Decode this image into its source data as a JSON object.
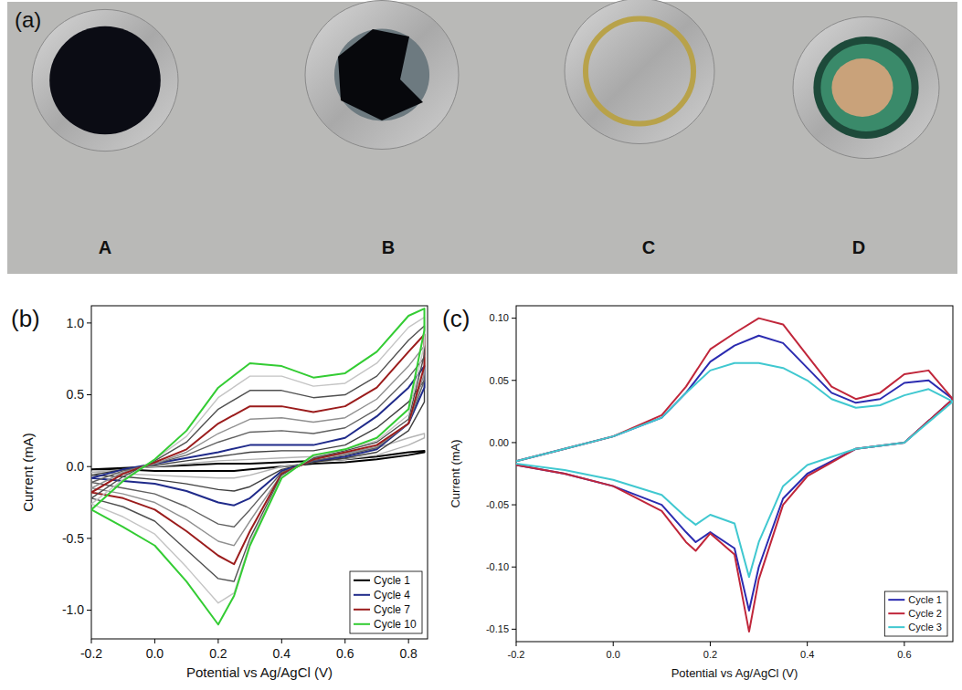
{
  "panel_a": {
    "letter": "(a)",
    "labels": [
      "A",
      "B",
      "C",
      "D"
    ]
  },
  "chart_data": [
    {
      "type": "line",
      "title": "(b)",
      "x_label": "Potential vs Ag/AgCl (V)",
      "y_label": "Current (mA)",
      "xlim": [
        -0.2,
        0.86
      ],
      "ylim": [
        -1.2,
        1.12
      ],
      "xticks": [
        -0.2,
        {
          "value": 0,
          "label": "0.0"
        },
        0.2,
        0.4,
        0.6,
        0.8
      ],
      "yticks": [
        {
          "value": -1,
          "label": "-1.0"
        },
        -0.5,
        {
          "value": 0,
          "label": "0.0"
        },
        0.5,
        {
          "value": 1,
          "label": "1.0"
        }
      ],
      "grid": false,
      "legend": "lower right",
      "series": [
        {
          "name": "Cycle 1",
          "color": "#000000",
          "x": [
            -0.2,
            -0.1,
            0,
            0.1,
            0.2,
            0.3,
            0.4,
            0.5,
            0.6,
            0.7,
            0.8,
            0.85,
            0.85,
            0.8,
            0.7,
            0.6,
            0.5,
            0.4,
            0.3,
            0.25,
            0.2,
            0.1,
            0,
            -0.1,
            -0.2
          ],
          "values": [
            -0.02,
            -0.01,
            0,
            0.01,
            0.02,
            0.02,
            0.03,
            0.04,
            0.05,
            0.07,
            0.1,
            0.11,
            0.1,
            0.08,
            0.05,
            0.03,
            0.02,
            0,
            -0.02,
            -0.03,
            -0.03,
            -0.03,
            -0.03,
            -0.02,
            -0.02
          ]
        },
        {
          "color": "#b4b4b4",
          "x": [
            -0.2,
            -0.1,
            0,
            0.1,
            0.2,
            0.3,
            0.4,
            0.5,
            0.6,
            0.7,
            0.8,
            0.85,
            0.85,
            0.8,
            0.7,
            0.6,
            0.5,
            0.4,
            0.3,
            0.25,
            0.2,
            0.1,
            0,
            -0.1,
            -0.2
          ],
          "values": [
            -0.04,
            -0.02,
            0,
            0.02,
            0.04,
            0.05,
            0.06,
            0.07,
            0.09,
            0.13,
            0.2,
            0.23,
            0.2,
            0.15,
            0.08,
            0.05,
            0.03,
            0,
            -0.06,
            -0.08,
            -0.08,
            -0.07,
            -0.06,
            -0.05,
            -0.04
          ]
        },
        {
          "color": "#404040",
          "x": [
            -0.2,
            -0.1,
            0,
            0.1,
            0.2,
            0.3,
            0.4,
            0.5,
            0.6,
            0.7,
            0.8,
            0.85,
            0.85,
            0.8,
            0.7,
            0.6,
            0.5,
            0.4,
            0.3,
            0.25,
            0.2,
            0.1,
            0,
            -0.1,
            -0.2
          ],
          "values": [
            -0.06,
            -0.02,
            0.01,
            0.04,
            0.07,
            0.1,
            0.11,
            0.11,
            0.15,
            0.27,
            0.45,
            0.6,
            0.45,
            0.25,
            0.1,
            0.06,
            0.03,
            -0.02,
            -0.14,
            -0.17,
            -0.16,
            -0.12,
            -0.09,
            -0.07,
            -0.06
          ]
        },
        {
          "name": "Cycle 4",
          "color": "#1f2a8a",
          "x": [
            -0.2,
            -0.1,
            0,
            0.1,
            0.2,
            0.3,
            0.4,
            0.5,
            0.6,
            0.7,
            0.8,
            0.85,
            0.85,
            0.8,
            0.7,
            0.6,
            0.5,
            0.4,
            0.3,
            0.25,
            0.2,
            0.1,
            0,
            -0.1,
            -0.2
          ],
          "values": [
            -0.08,
            -0.02,
            0.02,
            0.06,
            0.1,
            0.15,
            0.15,
            0.15,
            0.2,
            0.35,
            0.55,
            0.7,
            0.55,
            0.3,
            0.12,
            0.07,
            0.04,
            -0.03,
            -0.22,
            -0.27,
            -0.25,
            -0.17,
            -0.12,
            -0.1,
            -0.08
          ]
        },
        {
          "color": "#606060",
          "x": [
            -0.2,
            -0.1,
            0,
            0.1,
            0.2,
            0.3,
            0.4,
            0.5,
            0.6,
            0.7,
            0.8,
            0.85,
            0.85,
            0.8,
            0.7,
            0.6,
            0.5,
            0.4,
            0.3,
            0.25,
            0.2,
            0.1,
            0,
            -0.1,
            -0.2
          ],
          "values": [
            -0.11,
            -0.03,
            0.02,
            0.08,
            0.17,
            0.24,
            0.25,
            0.23,
            0.27,
            0.4,
            0.62,
            0.76,
            0.6,
            0.3,
            0.13,
            0.08,
            0.04,
            -0.04,
            -0.3,
            -0.42,
            -0.4,
            -0.28,
            -0.19,
            -0.15,
            -0.11
          ]
        },
        {
          "color": "#909090",
          "x": [
            -0.2,
            -0.1,
            0,
            0.1,
            0.2,
            0.3,
            0.4,
            0.5,
            0.6,
            0.7,
            0.8,
            0.85,
            0.85,
            0.8,
            0.7,
            0.6,
            0.5,
            0.4,
            0.3,
            0.25,
            0.2,
            0.1,
            0,
            -0.1,
            -0.2
          ],
          "values": [
            -0.15,
            -0.04,
            0.02,
            0.1,
            0.23,
            0.33,
            0.34,
            0.31,
            0.34,
            0.47,
            0.7,
            0.84,
            0.65,
            0.3,
            0.14,
            0.09,
            0.05,
            -0.05,
            -0.38,
            -0.55,
            -0.52,
            -0.37,
            -0.25,
            -0.19,
            -0.15
          ]
        },
        {
          "name": "Cycle 7",
          "color": "#9b1c1c",
          "x": [
            -0.2,
            -0.1,
            0,
            0.1,
            0.2,
            0.3,
            0.4,
            0.5,
            0.6,
            0.7,
            0.8,
            0.85,
            0.85,
            0.8,
            0.7,
            0.6,
            0.5,
            0.4,
            0.3,
            0.25,
            0.2,
            0.1,
            0,
            -0.1,
            -0.2
          ],
          "values": [
            -0.18,
            -0.05,
            0.03,
            0.12,
            0.3,
            0.42,
            0.42,
            0.38,
            0.42,
            0.55,
            0.8,
            0.92,
            0.7,
            0.3,
            0.15,
            0.1,
            0.05,
            -0.05,
            -0.45,
            -0.68,
            -0.62,
            -0.45,
            -0.3,
            -0.22,
            -0.18
          ]
        },
        {
          "color": "#505050",
          "x": [
            -0.2,
            -0.1,
            0,
            0.1,
            0.2,
            0.3,
            0.4,
            0.5,
            0.6,
            0.7,
            0.8,
            0.85,
            0.85,
            0.8,
            0.7,
            0.6,
            0.5,
            0.4,
            0.3,
            0.25,
            0.2,
            0.1,
            0,
            -0.1,
            -0.2
          ],
          "values": [
            -0.22,
            -0.07,
            0.04,
            0.17,
            0.4,
            0.53,
            0.53,
            0.48,
            0.5,
            0.63,
            0.88,
            0.98,
            0.78,
            0.33,
            0.17,
            0.11,
            0.06,
            -0.06,
            -0.5,
            -0.8,
            -0.78,
            -0.58,
            -0.38,
            -0.28,
            -0.22
          ]
        },
        {
          "color": "#c4c4c4",
          "x": [
            -0.2,
            -0.1,
            0,
            0.1,
            0.2,
            0.3,
            0.4,
            0.5,
            0.6,
            0.7,
            0.8,
            0.85,
            0.85,
            0.8,
            0.7,
            0.6,
            0.5,
            0.4,
            0.3,
            0.25,
            0.2,
            0.1,
            0,
            -0.1,
            -0.2
          ],
          "values": [
            -0.26,
            -0.09,
            0.05,
            0.21,
            0.48,
            0.63,
            0.63,
            0.56,
            0.58,
            0.72,
            0.97,
            1.04,
            0.85,
            0.36,
            0.18,
            0.12,
            0.07,
            -0.07,
            -0.53,
            -0.88,
            -0.95,
            -0.7,
            -0.47,
            -0.35,
            -0.26
          ]
        },
        {
          "name": "Cycle 10",
          "color": "#33cc33",
          "x": [
            -0.2,
            -0.1,
            0,
            0.1,
            0.2,
            0.3,
            0.4,
            0.5,
            0.6,
            0.7,
            0.8,
            0.85,
            0.85,
            0.8,
            0.7,
            0.6,
            0.5,
            0.4,
            0.3,
            0.25,
            0.2,
            0.1,
            0,
            -0.1,
            -0.2
          ],
          "values": [
            -0.3,
            -0.1,
            0.05,
            0.25,
            0.55,
            0.72,
            0.7,
            0.62,
            0.65,
            0.8,
            1.05,
            1.1,
            0.95,
            0.4,
            0.2,
            0.12,
            0.08,
            -0.08,
            -0.55,
            -0.9,
            -1.1,
            -0.8,
            -0.55,
            -0.42,
            -0.3
          ]
        }
      ]
    },
    {
      "type": "line",
      "title": "(c)",
      "x_label": "Potential vs Ag/AgCl (V)",
      "y_label": "Current (mA)",
      "xlim": [
        -0.2,
        0.7
      ],
      "ylim": [
        -0.16,
        0.11
      ],
      "xticks": [
        -0.2,
        {
          "value": 0,
          "label": "0.0"
        },
        0.2,
        0.4,
        0.6
      ],
      "yticks": [
        -0.15,
        {
          "value": -0.1,
          "label": "-0.10"
        },
        -0.05,
        {
          "value": 0,
          "label": "0.00"
        },
        0.05,
        {
          "value": 0.1,
          "label": "0.10"
        }
      ],
      "grid": false,
      "legend": "lower right",
      "series": [
        {
          "name": "Cycle 1",
          "color": "#2b2bb0",
          "x": [
            -0.2,
            -0.1,
            0,
            0.1,
            0.15,
            0.2,
            0.25,
            0.3,
            0.35,
            0.4,
            0.45,
            0.5,
            0.55,
            0.6,
            0.65,
            0.7,
            0.7,
            0.6,
            0.5,
            0.4,
            0.35,
            0.3,
            0.28,
            0.25,
            0.2,
            0.17,
            0.15,
            0.1,
            0,
            -0.1,
            -0.2
          ],
          "values": [
            -0.015,
            -0.005,
            0.005,
            0.02,
            0.04,
            0.065,
            0.078,
            0.086,
            0.08,
            0.06,
            0.04,
            0.032,
            0.035,
            0.048,
            0.05,
            0.035,
            0.035,
            0,
            -0.005,
            -0.025,
            -0.045,
            -0.1,
            -0.135,
            -0.085,
            -0.072,
            -0.08,
            -0.072,
            -0.05,
            -0.035,
            -0.025,
            -0.018
          ]
        },
        {
          "name": "Cycle 2",
          "color": "#c0263a",
          "x": [
            -0.2,
            -0.1,
            0,
            0.1,
            0.15,
            0.2,
            0.25,
            0.3,
            0.35,
            0.4,
            0.45,
            0.5,
            0.55,
            0.6,
            0.65,
            0.7,
            0.7,
            0.6,
            0.5,
            0.4,
            0.35,
            0.3,
            0.28,
            0.25,
            0.2,
            0.17,
            0.15,
            0.1,
            0,
            -0.1,
            -0.2
          ],
          "values": [
            -0.015,
            -0.005,
            0.005,
            0.022,
            0.045,
            0.075,
            0.088,
            0.1,
            0.095,
            0.07,
            0.045,
            0.035,
            0.04,
            0.055,
            0.058,
            0.035,
            0.035,
            0,
            -0.005,
            -0.027,
            -0.05,
            -0.11,
            -0.152,
            -0.09,
            -0.073,
            -0.087,
            -0.08,
            -0.055,
            -0.035,
            -0.025,
            -0.018
          ]
        },
        {
          "name": "Cycle 3",
          "color": "#40c8d0",
          "x": [
            -0.2,
            -0.1,
            0,
            0.1,
            0.15,
            0.2,
            0.25,
            0.3,
            0.35,
            0.4,
            0.45,
            0.5,
            0.55,
            0.6,
            0.65,
            0.7,
            0.7,
            0.6,
            0.5,
            0.4,
            0.35,
            0.3,
            0.28,
            0.25,
            0.2,
            0.17,
            0.15,
            0.1,
            0,
            -0.1,
            -0.2
          ],
          "values": [
            -0.015,
            -0.005,
            0.005,
            0.02,
            0.04,
            0.058,
            0.064,
            0.064,
            0.06,
            0.05,
            0.035,
            0.028,
            0.03,
            0.038,
            0.043,
            0.033,
            0.033,
            0,
            -0.005,
            -0.018,
            -0.035,
            -0.08,
            -0.108,
            -0.065,
            -0.058,
            -0.066,
            -0.06,
            -0.042,
            -0.03,
            -0.022,
            -0.017
          ]
        }
      ]
    }
  ]
}
